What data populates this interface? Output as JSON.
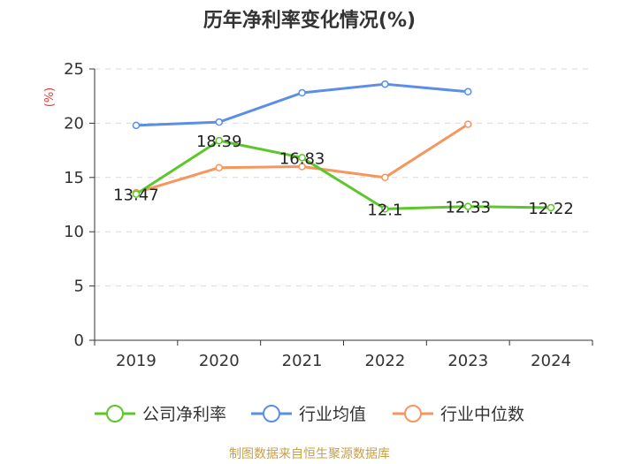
{
  "chart_data": {
    "type": "line",
    "title": "历年净利率变化情况(%)",
    "ylabel": "(%)",
    "categories": [
      "2019",
      "2020",
      "2021",
      "2022",
      "2023",
      "2024"
    ],
    "ylim": [
      0,
      25
    ],
    "yticks": [
      0,
      5,
      10,
      15,
      20,
      25
    ],
    "grid": true,
    "legend_position": "bottom",
    "series": [
      {
        "name": "公司净利率",
        "color": "#5cc72a",
        "values": [
          13.47,
          18.39,
          16.83,
          12.1,
          12.33,
          12.22
        ],
        "labels": [
          "13.47",
          "18.39",
          "16.83",
          "12.1",
          "12.33",
          "12.22"
        ]
      },
      {
        "name": "行业均值",
        "color": "#5b8ee6",
        "values": [
          19.8,
          20.1,
          22.8,
          23.6,
          22.9,
          null
        ]
      },
      {
        "name": "行业中位数",
        "color": "#f7965c",
        "values": [
          13.6,
          15.9,
          16.0,
          15.0,
          19.9,
          null
        ]
      }
    ],
    "source": "制图数据来自恒生聚源数据库"
  }
}
